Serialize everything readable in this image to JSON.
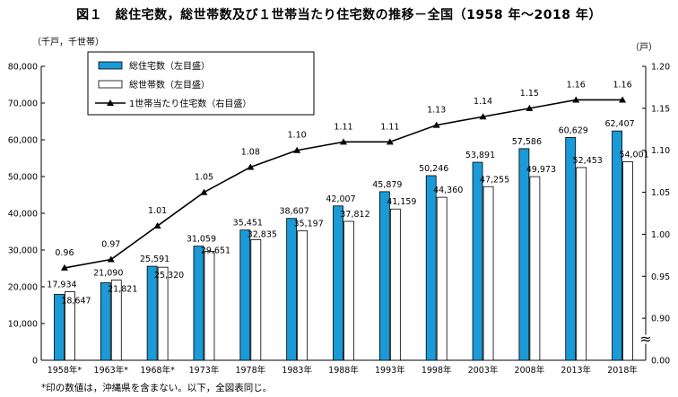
{
  "title": "図１　総住宅数，総世帯数及び１世帯当たり住宅数の推移－全国（1958 年～2018 年）",
  "note": "*印の数値は，沖縄県を含まない。以下，全図表同じ。",
  "chart_data": {
    "type": "bar",
    "categories": [
      "1958年*",
      "1963年*",
      "1968年*",
      "1973年",
      "1978年",
      "1983年",
      "1988年",
      "1993年",
      "1998年",
      "2003年",
      "2008年",
      "2013年",
      "2018年"
    ],
    "series": [
      {
        "name": "総住宅数（左目盛）",
        "type": "bar",
        "axis": "left",
        "color": "#1a9ad6",
        "values": [
          17934,
          21090,
          25591,
          31059,
          35451,
          38607,
          42007,
          45879,
          50246,
          53891,
          57586,
          60629,
          62407
        ],
        "labels": [
          "17,934",
          "21,090",
          "25,591",
          "31,059",
          "35,451",
          "38,607",
          "42,007",
          "45,879",
          "50,246",
          "53,891",
          "57,586",
          "60,629",
          "62,407"
        ]
      },
      {
        "name": "総世帯数（左目盛）",
        "type": "bar",
        "axis": "left",
        "color": "#ffffff",
        "values": [
          18647,
          21821,
          25320,
          29651,
          32835,
          35197,
          37812,
          41159,
          44360,
          47255,
          49973,
          52453,
          54001
        ],
        "labels": [
          "18,647",
          "21,821",
          "25,320",
          "29,651",
          "32,835",
          "35,197",
          "37,812",
          "41,159",
          "44,360",
          "47,255",
          "49,973",
          "52,453",
          "54,001"
        ]
      },
      {
        "name": "1世帯当たり住宅数（右目盛）",
        "type": "line",
        "axis": "right",
        "color": "#000000",
        "values": [
          0.96,
          0.97,
          1.01,
          1.05,
          1.08,
          1.1,
          1.11,
          1.11,
          1.13,
          1.14,
          1.15,
          1.16,
          1.16
        ],
        "labels": [
          "0.96",
          "0.97",
          "1.01",
          "1.05",
          "1.08",
          "1.10",
          "1.11",
          "1.11",
          "1.13",
          "1.14",
          "1.15",
          "1.16",
          "1.16"
        ]
      }
    ],
    "left_axis": {
      "label": "（千戸，千世帯）",
      "min": 0,
      "max": 80000,
      "ticks": [
        0,
        10000,
        20000,
        30000,
        40000,
        50000,
        60000,
        70000,
        80000
      ],
      "tick_labels": [
        "0",
        "10,000",
        "20,000",
        "30,000",
        "40,000",
        "50,000",
        "60,000",
        "70,000",
        "80,000"
      ]
    },
    "right_axis": {
      "label": "（戸）",
      "broken": true,
      "break_symbol": "≈",
      "ticks": [
        0.0,
        0.9,
        0.95,
        1.0,
        1.05,
        1.1,
        1.15,
        1.2
      ],
      "tick_labels": [
        "0.00",
        "0.90",
        "0.95",
        "1.00",
        "1.05",
        "1.10",
        "1.15",
        "1.20"
      ]
    },
    "legend": "top-left",
    "grid": false
  }
}
